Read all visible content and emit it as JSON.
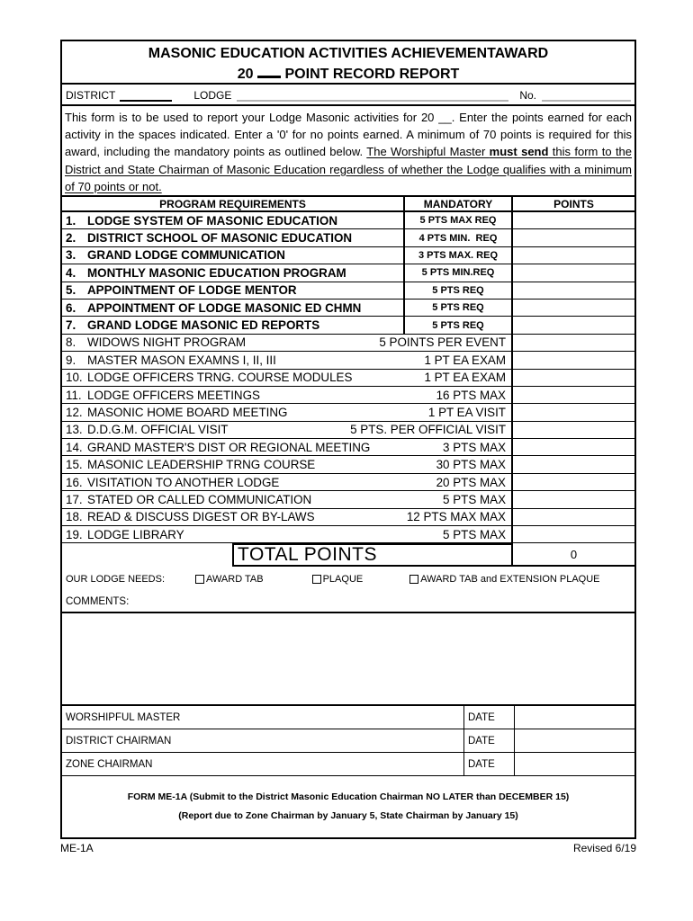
{
  "title": {
    "line1": "MASONIC EDUCATION ACTIVITIES ACHIEVEMENTAWARD",
    "line2_prefix": "20",
    "line2_suffix": "POINT RECORD REPORT"
  },
  "header_fields": {
    "district_label": "DISTRICT",
    "lodge_label": "LODGE",
    "no_label": "No."
  },
  "intro": {
    "segments": [
      {
        "style": "normal",
        "text": "This form is to be used to report your Lodge Masonic activities for 20 __. Enter the points earned for each activity in the spaces indicated. Enter a '0' for no points earned. A minimum of 70 points is required for this award, including the mandatory points as outlined below. "
      },
      {
        "style": "underline",
        "text": "The Worshipful Master "
      },
      {
        "style": "bold-underline",
        "text": "must send"
      },
      {
        "style": "underline",
        "text": " this form to the District and State Chairman of Masonic Education regardless of whether the Lodge qualifies with a minimum of 70 points or not."
      }
    ]
  },
  "table": {
    "headers": {
      "requirements": "PROGRAM REQUIREMENTS",
      "mandatory": "MANDATORY",
      "points": "POINTS"
    },
    "mandatory_rows": [
      {
        "num": "1.",
        "requirement": "LODGE SYSTEM OF MASONIC EDUCATION",
        "mandatory": "5 PTS MAX REQ",
        "points": ""
      },
      {
        "num": "2.",
        "requirement": "DISTRICT SCHOOL OF MASONIC EDUCATION",
        "mandatory": "4 PTS MIN.  REQ",
        "points": ""
      },
      {
        "num": "3.",
        "requirement": "GRAND LODGE COMMUNICATION",
        "mandatory": "3 PTS MAX. REQ",
        "points": ""
      },
      {
        "num": "4.",
        "requirement": "MONTHLY MASONIC EDUCATION PROGRAM",
        "mandatory": "5 PTS MIN.REQ",
        "points": ""
      },
      {
        "num": "5.",
        "requirement": "APPOINTMENT OF LODGE MENTOR",
        "mandatory": "5 PTS REQ",
        "points": ""
      },
      {
        "num": "6.",
        "requirement": "APPOINTMENT OF LODGE MASONIC ED CHMN",
        "mandatory": "5 PTS REQ",
        "points": ""
      },
      {
        "num": "7.",
        "requirement": "GRAND LODGE MASONIC ED REPORTS",
        "mandatory": "5 PTS REQ",
        "points": ""
      }
    ],
    "activity_rows": [
      {
        "num": "8.",
        "requirement": "WIDOWS NIGHT PROGRAM",
        "mandatory": "5 POINTS PER EVENT",
        "points": ""
      },
      {
        "num": "9.",
        "requirement": "MASTER MASON EXAMNS I, II, III",
        "mandatory": "1 PT EA EXAM",
        "points": ""
      },
      {
        "num": "10.",
        "requirement": "LODGE OFFICERS TRNG. COURSE MODULES",
        "mandatory": "1 PT EA EXAM",
        "points": ""
      },
      {
        "num": "11.",
        "requirement": "LODGE OFFICERS MEETINGS",
        "mandatory": "16 PTS MAX",
        "points": ""
      },
      {
        "num": "12.",
        "requirement": "MASONIC HOME BOARD MEETING",
        "mandatory": "1 PT EA VISIT",
        "points": ""
      },
      {
        "num": "13.",
        "requirement": "D.D.G.M. OFFICIAL VISIT",
        "mandatory": "5 PTS. PER OFFICIAL VISIT",
        "points": ""
      },
      {
        "num": "14.",
        "requirement": "GRAND MASTER'S DIST OR REGIONAL MEETING",
        "mandatory": "3 PTS MAX",
        "points": ""
      },
      {
        "num": "15.",
        "requirement": "MASONIC LEADERSHIP TRNG COURSE",
        "mandatory": "30 PTS MAX",
        "points": ""
      },
      {
        "num": "16.",
        "requirement": "VISITATION TO ANOTHER LODGE",
        "mandatory": "20 PTS MAX",
        "points": ""
      },
      {
        "num": "17.",
        "requirement": "STATED OR CALLED COMMUNICATION",
        "mandatory": "5 PTS MAX",
        "points": ""
      },
      {
        "num": "18.",
        "requirement": "READ & DISCUSS DIGEST OR BY-LAWS",
        "mandatory": "12 PTS MAX MAX",
        "points": ""
      },
      {
        "num": "19.",
        "requirement": "LODGE LIBRARY",
        "mandatory": "5 PTS MAX",
        "points": ""
      }
    ],
    "total_row": {
      "label": "TOTAL POINTS",
      "value": "0"
    }
  },
  "needs": {
    "label": "OUR LODGE NEEDS:",
    "options": [
      "AWARD TAB",
      "PLAQUE",
      "AWARD TAB and EXTENSION PLAQUE"
    ]
  },
  "comments_label": "COMMENTS:",
  "signatures": {
    "date_label": "DATE",
    "rows": [
      "WORSHIPFUL MASTER",
      "DISTRICT CHAIRMAN",
      "ZONE CHAIRMAN"
    ]
  },
  "form_footer": {
    "line1": "FORM ME-1A (Submit to the District Masonic Education Chairman NO LATER than DECEMBER 15)",
    "line2": "(Report due to Zone Chairman by January 5, State Chairman by January 15)"
  },
  "page_footer": {
    "left": "ME-1A",
    "right": "Revised 6/19"
  },
  "colors": {
    "ink": "#000000",
    "field_line_gray": "#b5b5b5",
    "background": "#ffffff"
  }
}
